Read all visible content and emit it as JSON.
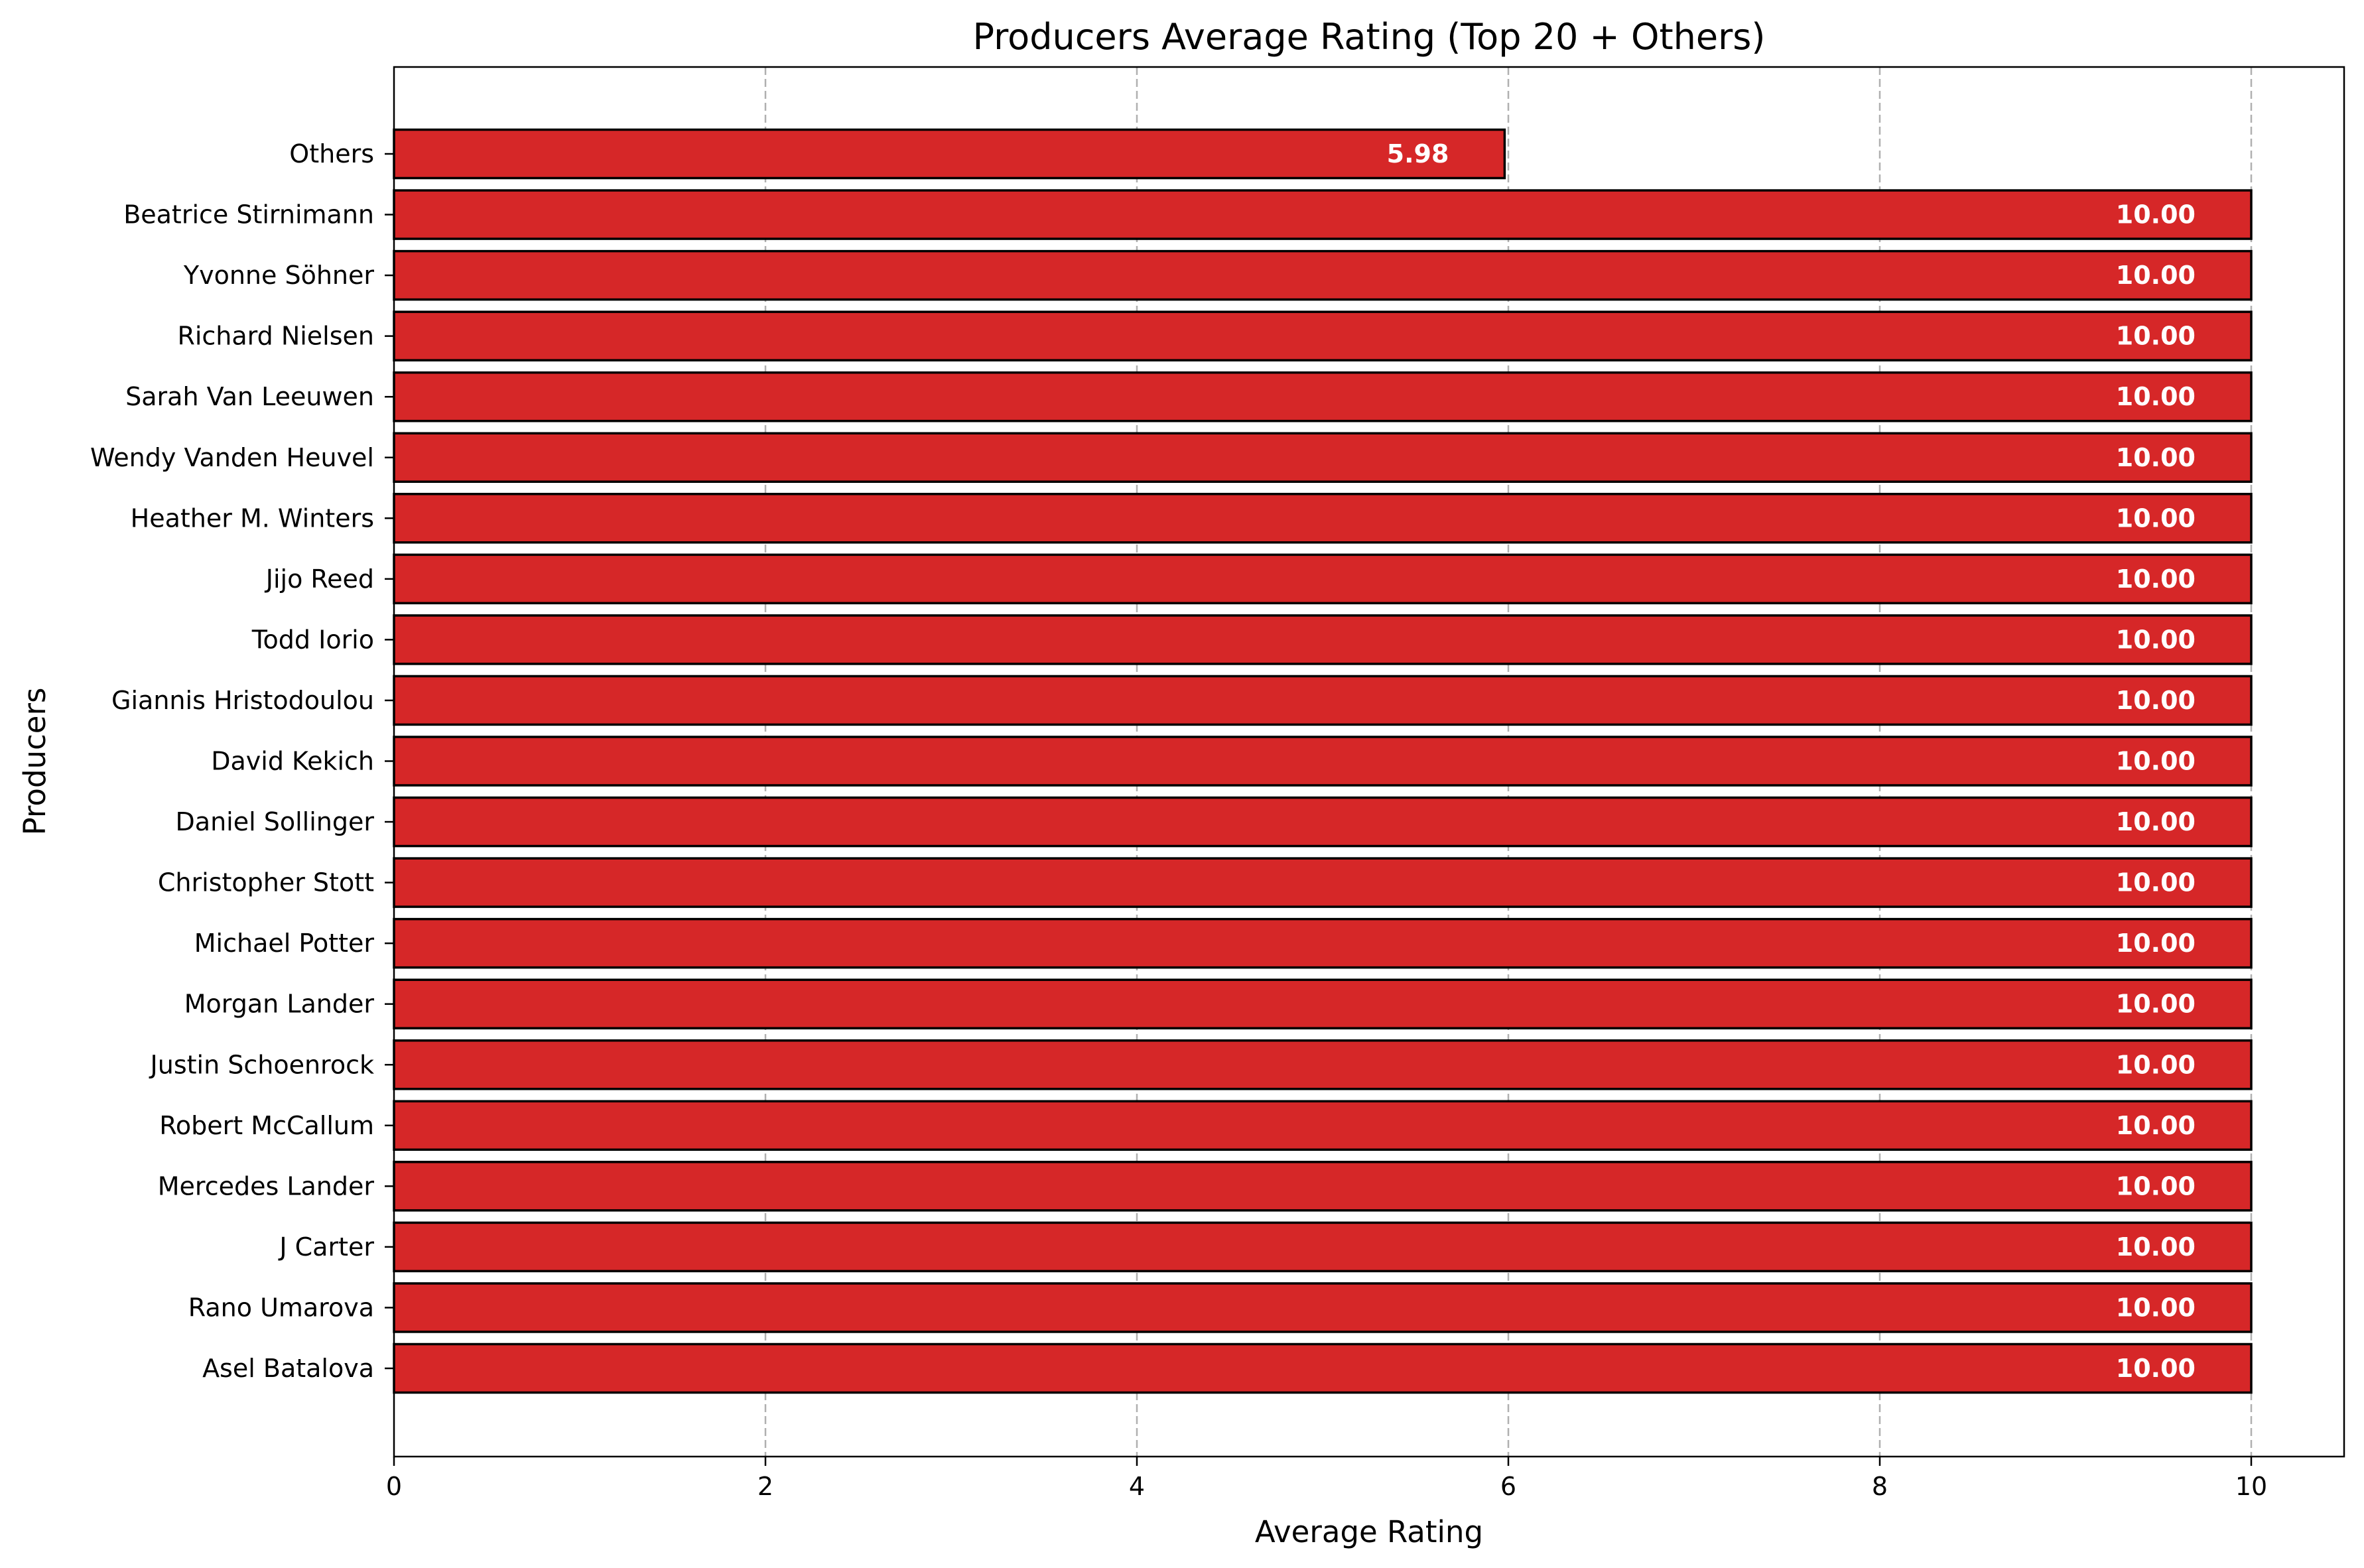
{
  "chart_data": {
    "type": "bar",
    "orientation": "horizontal",
    "title": "Producers Average Rating (Top 20 + Others)",
    "xlabel": "Average Rating",
    "ylabel": "Producers",
    "xlim": [
      0,
      10.5
    ],
    "xticks": [
      "0",
      "2",
      "4",
      "6",
      "8",
      "10"
    ],
    "grid": "x-axis dashed",
    "bar_color": "#d62728",
    "bar_edge_color": "#000000",
    "value_label_color": "#ffffff",
    "categories": [
      "Others",
      "Beatrice Stirnimann",
      "Yvonne Söhner",
      "Richard Nielsen",
      "Sarah Van Leeuwen",
      "Wendy Vanden Heuvel",
      "Heather M. Winters",
      "Jijo Reed",
      "Todd Iorio",
      "Giannis Hristodoulou",
      "David Kekich",
      "Daniel Sollinger",
      "Christopher Stott",
      "Michael Potter",
      "Morgan Lander",
      "Justin Schoenrock",
      "Robert McCallum",
      "Mercedes Lander",
      "J Carter",
      "Rano Umarova",
      "Asel Batalova"
    ],
    "values": [
      5.98,
      10,
      10,
      10,
      10,
      10,
      10,
      10,
      10,
      10,
      10,
      10,
      10,
      10,
      10,
      10,
      10,
      10,
      10,
      10,
      10
    ],
    "value_labels": [
      "5.98",
      "10.00",
      "10.00",
      "10.00",
      "10.00",
      "10.00",
      "10.00",
      "10.00",
      "10.00",
      "10.00",
      "10.00",
      "10.00",
      "10.00",
      "10.00",
      "10.00",
      "10.00",
      "10.00",
      "10.00",
      "10.00",
      "10.00",
      "10.00"
    ]
  }
}
